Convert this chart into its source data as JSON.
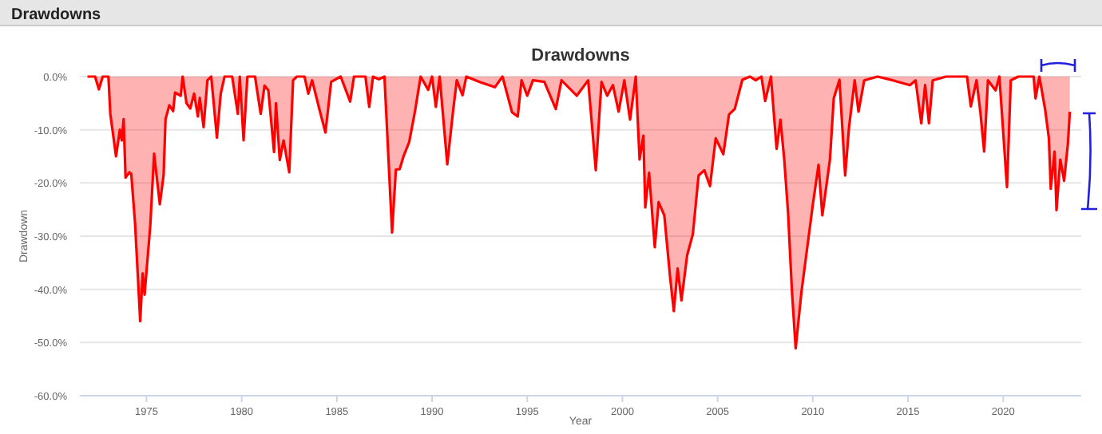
{
  "chart_data": {
    "type": "area",
    "title": "Drawdowns",
    "xlabel": "Year",
    "ylabel": "Drawdown",
    "annotations": [
      "Drawdowns"
    ],
    "grid": "y",
    "xlim": [
      1971.5,
      2024.1
    ],
    "xticks": [
      1975,
      1980,
      1985,
      1990,
      1995,
      2000,
      2005,
      2010,
      2015,
      2020
    ],
    "ylim": [
      -60,
      0
    ],
    "yticks": [
      {
        "value": 0,
        "label": "0.0%"
      },
      {
        "value": -10,
        "label": "-10.0%"
      },
      {
        "value": -20,
        "label": "-20.0%"
      },
      {
        "value": -30,
        "label": "-30.0%"
      },
      {
        "value": -40,
        "label": "-40.0%"
      },
      {
        "value": -50,
        "label": "-50.0%"
      },
      {
        "value": -60,
        "label": "-60.0%"
      }
    ],
    "series": [
      {
        "color": "#ff0000",
        "x": [
          1971.9,
          1972.3,
          1972.5,
          1972.7,
          1973.0,
          1973.1,
          1973.4,
          1973.6,
          1973.7,
          1973.8,
          1973.9,
          1974.1,
          1974.2,
          1974.4,
          1974.67,
          1974.8,
          1974.9,
          1975.2,
          1975.4,
          1975.7,
          1975.9,
          1976.0,
          1976.2,
          1976.4,
          1976.5,
          1976.8,
          1976.9,
          1977.1,
          1977.3,
          1977.5,
          1977.7,
          1977.8,
          1978.0,
          1978.2,
          1978.4,
          1978.7,
          1978.9,
          1979.1,
          1979.5,
          1979.8,
          1979.9,
          1980.1,
          1980.3,
          1980.7,
          1981.0,
          1981.2,
          1981.4,
          1981.7,
          1981.8,
          1982.0,
          1982.2,
          1982.5,
          1982.7,
          1982.9,
          1983.3,
          1983.5,
          1983.7,
          1984.1,
          1984.4,
          1984.7,
          1985.2,
          1985.7,
          1985.9,
          1986.5,
          1986.7,
          1986.9,
          1987.2,
          1987.5,
          1987.9,
          1988.1,
          1988.3,
          1988.5,
          1988.8,
          1989.1,
          1989.4,
          1989.8,
          1990.0,
          1990.2,
          1990.4,
          1990.8,
          1991.1,
          1991.3,
          1991.6,
          1991.8,
          1992.5,
          1993.3,
          1993.7,
          1994.2,
          1994.5,
          1994.7,
          1995.0,
          1995.3,
          1995.9,
          1996.5,
          1996.8,
          1997.6,
          1998.2,
          1998.6,
          1998.9,
          1999.2,
          1999.5,
          1999.8,
          2000.1,
          2000.4,
          2000.7,
          2000.9,
          2001.1,
          2001.2,
          2001.4,
          2001.7,
          2001.9,
          2002.2,
          2002.5,
          2002.7,
          2002.9,
          2003.1,
          2003.4,
          2003.7,
          2004.0,
          2004.3,
          2004.6,
          2004.9,
          2005.3,
          2005.6,
          2005.9,
          2006.3,
          2006.7,
          2007.0,
          2007.3,
          2007.5,
          2007.8,
          2008.1,
          2008.3,
          2008.5,
          2008.7,
          2008.9,
          2009.1,
          2009.4,
          2009.8,
          2010.0,
          2010.3,
          2010.5,
          2010.9,
          2011.1,
          2011.4,
          2011.7,
          2011.9,
          2012.2,
          2012.4,
          2012.7,
          2013.4,
          2014.2,
          2015.1,
          2015.4,
          2015.7,
          2015.9,
          2016.1,
          2016.3,
          2017.0,
          2018.1,
          2018.3,
          2018.6,
          2018.8,
          2019.0,
          2019.2,
          2019.6,
          2019.8,
          2020.2,
          2020.4,
          2020.8,
          2021.6,
          2021.7,
          2021.9,
          2022.2,
          2022.4,
          2022.5,
          2022.7,
          2022.8,
          2023.0,
          2023.2,
          2023.4,
          2023.5
        ],
        "values": [
          0,
          0,
          -2.4,
          0,
          0,
          -7,
          -15,
          -10,
          -12,
          -8,
          -19,
          -18,
          -18.3,
          -27.6,
          -46,
          -37,
          -41,
          -28,
          -14.5,
          -24,
          -18.5,
          -8,
          -5.4,
          -6.5,
          -3,
          -3.6,
          0,
          -5,
          -6,
          -3.2,
          -7.5,
          -4,
          -9.5,
          -0.7,
          0,
          -11.5,
          -3.2,
          0,
          0,
          -7,
          0,
          -12,
          0,
          0,
          -7,
          -1.7,
          -2.6,
          -14.2,
          -5,
          -15.7,
          -12,
          -18,
          -0.7,
          0,
          0,
          -3.2,
          -0.7,
          -6.4,
          -10.5,
          -1,
          0,
          -4.7,
          0,
          0,
          -5.7,
          0,
          -0.5,
          0,
          -29.3,
          -17.5,
          -17.4,
          -15,
          -12.3,
          -6.6,
          0,
          -2.5,
          0,
          -5.7,
          0,
          -16.5,
          -6.6,
          -0.7,
          -3.5,
          0,
          -1,
          -2,
          0,
          -6.7,
          -7.5,
          -0.7,
          -3.6,
          -0.7,
          -1,
          -6.1,
          -0.7,
          -3.6,
          -0.7,
          -17.6,
          -1,
          -3.6,
          -1.6,
          -6.6,
          -0.7,
          -8.1,
          0,
          -15.6,
          -11.1,
          -24.6,
          -18.1,
          -32.1,
          -23.6,
          -26.1,
          -37.6,
          -44.1,
          -36.1,
          -42.1,
          -33.6,
          -29.6,
          -18.6,
          -17.6,
          -20.6,
          -11.6,
          -14.6,
          -7.1,
          -6.1,
          -0.6,
          0,
          -0.7,
          0,
          -4.6,
          0,
          -13.6,
          -8.1,
          -15.6,
          -25.6,
          -40.1,
          -51.1,
          -40.6,
          -29.6,
          -24.1,
          -16.6,
          -26.1,
          -15.6,
          -4.1,
          -0.6,
          -18.6,
          -9.6,
          -0.7,
          -6.6,
          -0.7,
          0,
          -0.7,
          -1.6,
          -0.7,
          -8.8,
          -1.6,
          -8.8,
          -0.7,
          0,
          0,
          -5.6,
          -0.7,
          -6.6,
          -14.1,
          -0.7,
          -2.6,
          0,
          -20.8,
          -0.7,
          0,
          0,
          -4.1,
          0,
          -6.1,
          -11.6,
          -21.1,
          -14.1,
          -25.1,
          -15.6,
          -19.6,
          -12.6,
          -6.6
        ]
      }
    ]
  }
}
